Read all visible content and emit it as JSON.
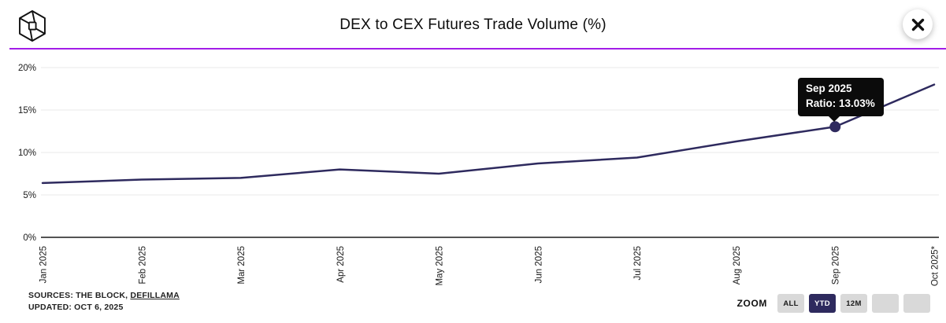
{
  "header": {
    "title": "DEX to CEX Futures Trade Volume (%)"
  },
  "tooltip": {
    "title": "Sep 2025",
    "value": "Ratio: 13.03%"
  },
  "footer": {
    "sources_prefix": "SOURCES: THE BLOCK, ",
    "sources_link": "DEFILLAMA",
    "updated": "UPDATED: OCT 6, 2025"
  },
  "zoom_controls": {
    "label": "ZOOM",
    "buttons": [
      {
        "label": "ALL",
        "active": false
      },
      {
        "label": "YTD",
        "active": true
      },
      {
        "label": "12M",
        "active": false
      },
      {
        "label": "",
        "active": false
      },
      {
        "label": "",
        "active": false
      }
    ]
  },
  "colors": {
    "accent_divider": "#a21ce8",
    "line": "#2e2a5e",
    "tooltip_bg": "#0b0b0b",
    "button_bg": "#d9d9d9",
    "button_active_bg": "#2e2a5e",
    "grid": "#e9e9e9",
    "axis": "#1a1a1a"
  },
  "chart_data": {
    "type": "line",
    "title": "DEX to CEX Futures Trade Volume (%)",
    "series_name": "Ratio",
    "categories": [
      "Jan 2025",
      "Feb 2025",
      "Mar 2025",
      "Apr 2025",
      "May 2025",
      "Jun 2025",
      "Jul 2025",
      "Aug 2025",
      "Sep 2025",
      "Oct 2025*"
    ],
    "values": [
      6.4,
      6.8,
      7.0,
      8.0,
      7.5,
      8.7,
      9.4,
      11.3,
      13.03,
      18.0
    ],
    "ylim": [
      0,
      20
    ],
    "yticks": {
      "values": [
        0,
        5,
        10,
        15,
        20
      ],
      "labels": [
        "0%",
        "5%",
        "10%",
        "15%",
        "20%"
      ]
    },
    "grid": "horizontal",
    "legend": "none",
    "highlight": {
      "index": 8,
      "label": "Sep 2025",
      "value": "Ratio: 13.03%"
    }
  }
}
